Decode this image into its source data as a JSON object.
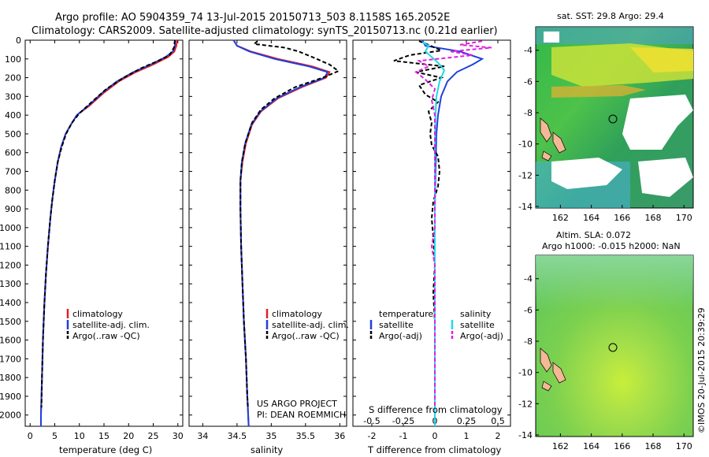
{
  "title": {
    "line1": "Argo profile: AO 5904359_74 13-Jul-2015 20150713_503 8.1158S 165.2052E",
    "line2": "Climatology: CARS2009. Satellite-adjusted climatology: synTS_20150713.nc (0.21d earlier)"
  },
  "depth_ticks": [
    "0",
    "100",
    "200",
    "300",
    "400",
    "500",
    "600",
    "700",
    "800",
    "900",
    "1000",
    "1100",
    "1200",
    "1300",
    "1400",
    "1500",
    "1600",
    "1700",
    "1800",
    "1900",
    "2000"
  ],
  "legends": {
    "profile": [
      "climatology",
      "satellite-adj. clim.",
      "Argo(..raw -QC)"
    ],
    "diff_temp_title": "temperature",
    "diff_sal_title": "salinity",
    "diff_items": [
      "satellite",
      "Argo(-adj)"
    ]
  },
  "credits": {
    "line1": "US ARGO PROJECT",
    "line2": "PI: DEAN ROEMMICH"
  },
  "maps": {
    "sst_title": "sat. SST: 29.8  Argo: 29.4",
    "sla_title1": "Altim. SLA: 0.072",
    "sla_title2": "Argo h1000: -0.015  h2000: NaN",
    "lon_ticks": [
      "162",
      "164",
      "166",
      "168",
      "170"
    ],
    "lat_ticks": [
      "-4",
      "-6",
      "-8",
      "-10",
      "-12",
      "-14"
    ]
  },
  "watermark": "©IMOS 20-Jul-2015 20:39:29",
  "colors": {
    "climatology": "#e02020",
    "satellite": "#1f3fe0",
    "argo": "#000000",
    "sat_salinity": "#22d8e8",
    "argo_salinity": "#e020e0"
  },
  "chart_data": [
    {
      "type": "line",
      "xlabel": "temperature (deg C)",
      "ylabel": "",
      "xlim": [
        -1,
        31
      ],
      "ylim": [
        2060,
        0
      ],
      "xticks": [
        "0",
        "5",
        "10",
        "15",
        "20",
        "25",
        "30"
      ],
      "x_name": "temperature",
      "y_name": "depth",
      "series": [
        {
          "name": "climatology",
          "color": "#e02020",
          "dash": "",
          "points": [
            [
              29.8,
              0
            ],
            [
              29.7,
              30
            ],
            [
              29.3,
              60
            ],
            [
              28.0,
              90
            ],
            [
              25.0,
              130
            ],
            [
              21.5,
              170
            ],
            [
              18.0,
              220
            ],
            [
              15.0,
              280
            ],
            [
              12.0,
              350
            ],
            [
              9.5,
              400
            ],
            [
              8.3,
              450
            ],
            [
              7.2,
              500
            ],
            [
              6.3,
              570
            ],
            [
              5.6,
              650
            ],
            [
              5.0,
              750
            ],
            [
              4.5,
              850
            ],
            [
              4.1,
              950
            ],
            [
              3.6,
              1100
            ],
            [
              3.2,
              1250
            ],
            [
              2.9,
              1400
            ],
            [
              2.6,
              1600
            ],
            [
              2.4,
              1800
            ],
            [
              2.2,
              2000
            ],
            [
              2.2,
              2060
            ]
          ]
        },
        {
          "name": "satellite-adj. clim.",
          "color": "#1f3fe0",
          "dash": "",
          "points": [
            [
              29.4,
              0
            ],
            [
              29.4,
              30
            ],
            [
              29.0,
              60
            ],
            [
              27.5,
              90
            ],
            [
              24.5,
              130
            ],
            [
              21.0,
              170
            ],
            [
              17.6,
              220
            ],
            [
              14.7,
              280
            ],
            [
              11.8,
              350
            ],
            [
              9.5,
              400
            ],
            [
              8.3,
              450
            ],
            [
              7.2,
              500
            ],
            [
              6.3,
              570
            ],
            [
              5.6,
              650
            ],
            [
              5.0,
              750
            ],
            [
              4.5,
              850
            ],
            [
              4.1,
              950
            ],
            [
              3.6,
              1100
            ],
            [
              3.2,
              1250
            ],
            [
              2.9,
              1400
            ],
            [
              2.6,
              1600
            ],
            [
              2.4,
              1800
            ],
            [
              2.2,
              2000
            ],
            [
              2.2,
              2060
            ]
          ]
        },
        {
          "name": "Argo(..raw -QC)",
          "color": "#000000",
          "dash": "5,3",
          "points": [
            [
              29.4,
              0
            ],
            [
              29.2,
              40
            ],
            [
              28.3,
              80
            ],
            [
              26.0,
              110
            ],
            [
              22.5,
              150
            ],
            [
              19.0,
              200
            ],
            [
              15.5,
              260
            ],
            [
              12.5,
              330
            ],
            [
              10.0,
              390
            ],
            [
              8.5,
              440
            ],
            [
              7.3,
              500
            ],
            [
              6.4,
              570
            ],
            [
              5.6,
              650
            ],
            [
              5.0,
              750
            ],
            [
              4.5,
              850
            ],
            [
              4.1,
              950
            ],
            [
              3.6,
              1100
            ],
            [
              3.2,
              1250
            ],
            [
              2.9,
              1400
            ],
            [
              2.6,
              1600
            ],
            [
              2.4,
              1800
            ],
            [
              2.3,
              1960
            ]
          ]
        }
      ]
    },
    {
      "type": "line",
      "xlabel": "salinity",
      "ylabel": "",
      "xlim": [
        33.8,
        36.1
      ],
      "ylim": [
        2060,
        0
      ],
      "xticks": [
        "34",
        "34.5",
        "35",
        "35.5",
        "36"
      ],
      "x_name": "salinity",
      "y_name": "depth",
      "series": [
        {
          "name": "climatology",
          "color": "#e02020",
          "dash": "",
          "points": [
            [
              34.45,
              0
            ],
            [
              34.5,
              30
            ],
            [
              34.7,
              60
            ],
            [
              35.1,
              100
            ],
            [
              35.6,
              140
            ],
            [
              35.85,
              170
            ],
            [
              35.8,
              200
            ],
            [
              35.45,
              250
            ],
            [
              35.1,
              310
            ],
            [
              34.85,
              380
            ],
            [
              34.72,
              450
            ],
            [
              34.63,
              550
            ],
            [
              34.58,
              650
            ],
            [
              34.55,
              750
            ],
            [
              34.55,
              900
            ],
            [
              34.56,
              1100
            ],
            [
              34.58,
              1300
            ],
            [
              34.6,
              1500
            ],
            [
              34.63,
              1700
            ],
            [
              34.65,
              1900
            ],
            [
              34.67,
              2060
            ]
          ]
        },
        {
          "name": "satellite-adj. clim.",
          "color": "#1f3fe0",
          "dash": "",
          "points": [
            [
              34.45,
              0
            ],
            [
              34.5,
              30
            ],
            [
              34.68,
              60
            ],
            [
              35.05,
              100
            ],
            [
              35.55,
              140
            ],
            [
              35.82,
              170
            ],
            [
              35.78,
              200
            ],
            [
              35.42,
              250
            ],
            [
              35.08,
              310
            ],
            [
              34.84,
              380
            ],
            [
              34.71,
              450
            ],
            [
              34.62,
              550
            ],
            [
              34.57,
              650
            ],
            [
              34.55,
              750
            ],
            [
              34.55,
              900
            ],
            [
              34.56,
              1100
            ],
            [
              34.58,
              1300
            ],
            [
              34.6,
              1500
            ],
            [
              34.63,
              1700
            ],
            [
              34.65,
              1900
            ],
            [
              34.67,
              2060
            ]
          ]
        },
        {
          "name": "Argo(..raw -QC)",
          "color": "#000000",
          "dash": "5,3",
          "points": [
            [
              34.8,
              5
            ],
            [
              34.75,
              20
            ],
            [
              35.2,
              40
            ],
            [
              35.4,
              60
            ],
            [
              35.6,
              90
            ],
            [
              35.85,
              130
            ],
            [
              35.98,
              165
            ],
            [
              35.75,
              200
            ],
            [
              35.35,
              250
            ],
            [
              35.05,
              310
            ],
            [
              34.85,
              370
            ],
            [
              34.72,
              440
            ],
            [
              34.62,
              550
            ],
            [
              34.57,
              650
            ],
            [
              34.55,
              750
            ],
            [
              34.55,
              900
            ],
            [
              34.56,
              1100
            ],
            [
              34.58,
              1300
            ],
            [
              34.6,
              1500
            ],
            [
              34.63,
              1700
            ],
            [
              34.65,
              1900
            ],
            [
              34.66,
              1960
            ]
          ]
        }
      ]
    },
    {
      "type": "line",
      "xlabel": "T difference from climatology",
      "xlabel_top": "S difference from climatology",
      "ylabel": "",
      "xlim": [
        -2.6,
        2.4
      ],
      "ylim": [
        2060,
        0
      ],
      "xticks": [
        "-2",
        "-1",
        "0",
        "1",
        "2"
      ],
      "xticks_top": [
        "-0.5",
        "-0.25",
        "0",
        "0.25",
        "0.5"
      ],
      "xticks_top_pos": [
        -2,
        -1,
        0,
        1,
        2
      ],
      "x_name": "difference",
      "y_name": "depth",
      "series": [
        {
          "name": "temperature satellite",
          "color": "#1f3fe0",
          "dash": "",
          "points": [
            [
              -0.4,
              0
            ],
            [
              -0.3,
              30
            ],
            [
              0.8,
              60
            ],
            [
              1.5,
              100
            ],
            [
              1.2,
              130
            ],
            [
              0.7,
              170
            ],
            [
              0.4,
              220
            ],
            [
              0.2,
              300
            ],
            [
              0.1,
              400
            ],
            [
              0.05,
              500
            ],
            [
              0.02,
              700
            ],
            [
              0.0,
              900
            ],
            [
              0.0,
              1200
            ],
            [
              0.0,
              1500
            ],
            [
              0.0,
              1800
            ],
            [
              0.0,
              2060
            ]
          ]
        },
        {
          "name": "temperature Argo(-adj)",
          "color": "#000000",
          "dash": "5,3",
          "points": [
            [
              -0.5,
              5
            ],
            [
              -0.2,
              25
            ],
            [
              0.2,
              55
            ],
            [
              -0.8,
              80
            ],
            [
              -1.3,
              110
            ],
            [
              0.3,
              140
            ],
            [
              -0.6,
              170
            ],
            [
              0.2,
              200
            ],
            [
              -0.5,
              240
            ],
            [
              -0.3,
              290
            ],
            [
              0.1,
              330
            ],
            [
              -0.2,
              380
            ],
            [
              -0.1,
              440
            ],
            [
              -0.15,
              500
            ],
            [
              -0.1,
              560
            ],
            [
              0.1,
              620
            ],
            [
              0.15,
              700
            ],
            [
              0.1,
              780
            ],
            [
              -0.05,
              860
            ],
            [
              -0.1,
              950
            ],
            [
              -0.05,
              1050
            ],
            [
              0.0,
              1200
            ],
            [
              -0.05,
              1350
            ],
            [
              0.0,
              1500
            ],
            [
              0.0,
              1700
            ],
            [
              0.0,
              1900
            ],
            [
              0.0,
              1960
            ]
          ]
        },
        {
          "name": "salinity satellite",
          "color": "#22d8e8",
          "dash": "",
          "points": [
            [
              -0.4,
              10
            ],
            [
              -0.2,
              30
            ],
            [
              -0.3,
              60
            ],
            [
              -0.1,
              90
            ],
            [
              0.1,
              120
            ],
            [
              0.3,
              160
            ],
            [
              0.15,
              220
            ],
            [
              0.05,
              300
            ],
            [
              0.02,
              400
            ],
            [
              0.0,
              600
            ],
            [
              0.0,
              900
            ],
            [
              0.0,
              1200
            ],
            [
              0.0,
              1500
            ],
            [
              0.0,
              1800
            ],
            [
              0.0,
              2060
            ]
          ]
        },
        {
          "name": "salinity Argo(-adj)",
          "color": "#e020e0",
          "dash": "5,3",
          "points": [
            [
              1.5,
              5
            ],
            [
              0.8,
              25
            ],
            [
              1.8,
              40
            ],
            [
              0.5,
              60
            ],
            [
              1.2,
              80
            ],
            [
              -0.5,
              110
            ],
            [
              -0.2,
              140
            ],
            [
              -0.6,
              170
            ],
            [
              -0.3,
              210
            ],
            [
              0.0,
              260
            ],
            [
              -0.1,
              320
            ],
            [
              0.0,
              400
            ],
            [
              0.0,
              700
            ],
            [
              0.0,
              1000
            ],
            [
              -0.1,
              1100
            ],
            [
              0.0,
              1200
            ],
            [
              0.0,
              1500
            ],
            [
              0.0,
              1960
            ]
          ]
        }
      ]
    }
  ]
}
